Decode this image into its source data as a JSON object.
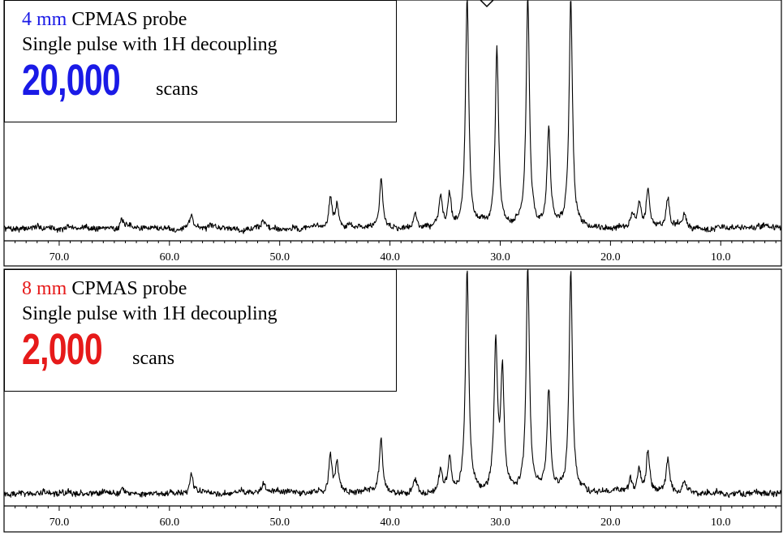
{
  "colors": {
    "probe_4mm": "#1a1ae6",
    "probe_8mm": "#e61a1a",
    "trace": "#000000"
  },
  "panels": [
    {
      "probe_size": "4 mm",
      "probe_rest": " CPMAS probe",
      "pulse": "Single pulse with 1H decoupling",
      "scan_count": "20,000",
      "scan_word": " scans"
    },
    {
      "probe_size": "8 mm",
      "probe_rest": " CPMAS probe",
      "pulse": "Single pulse with 1H decoupling",
      "scan_count": "2,000",
      "scan_word": " scans"
    }
  ],
  "chart_data": [
    {
      "type": "line",
      "xlabel": "",
      "ylabel": "",
      "xlim": [
        75.0,
        4.5
      ],
      "x_reversed": true,
      "tick_labels": [
        "70.0",
        "60.0",
        "50.0",
        "40.0",
        "30.0",
        "20.0",
        "10.0"
      ],
      "tick_values": [
        70,
        60,
        50,
        40,
        30,
        20,
        10
      ],
      "peaks": [
        {
          "x": 64.3,
          "y": 0.6
        },
        {
          "x": 58.0,
          "y": 1.0
        },
        {
          "x": 51.5,
          "y": 0.6
        },
        {
          "x": 45.4,
          "y": 2.3
        },
        {
          "x": 44.8,
          "y": 1.6
        },
        {
          "x": 40.8,
          "y": 3.6
        },
        {
          "x": 37.7,
          "y": 1.0
        },
        {
          "x": 35.4,
          "y": 2.2
        },
        {
          "x": 34.6,
          "y": 2.5
        },
        {
          "x": 33.0,
          "y": 17.0
        },
        {
          "x": 30.3,
          "y": 13.2
        },
        {
          "x": 27.5,
          "y": 17.0
        },
        {
          "x": 25.6,
          "y": 7.4
        },
        {
          "x": 23.6,
          "y": 17.0
        },
        {
          "x": 18.0,
          "y": 0.8
        },
        {
          "x": 17.4,
          "y": 1.7
        },
        {
          "x": 16.6,
          "y": 3.0
        },
        {
          "x": 14.8,
          "y": 2.2
        },
        {
          "x": 13.3,
          "y": 1.0
        }
      ],
      "noise_level": 0.18,
      "ylim": [
        -0.9,
        17.0
      ]
    },
    {
      "type": "line",
      "xlabel": "",
      "ylabel": "",
      "xlim": [
        75.0,
        4.5
      ],
      "x_reversed": true,
      "tick_labels": [
        "70.0",
        "60.0",
        "50.0",
        "40.0",
        "30.0",
        "20.0",
        "10.0"
      ],
      "tick_values": [
        70,
        60,
        50,
        40,
        30,
        20,
        10
      ],
      "peaks": [
        {
          "x": 64.3,
          "y": 0.6
        },
        {
          "x": 58.0,
          "y": 1.5
        },
        {
          "x": 51.5,
          "y": 0.7
        },
        {
          "x": 45.4,
          "y": 2.9
        },
        {
          "x": 44.8,
          "y": 2.2
        },
        {
          "x": 40.8,
          "y": 3.8
        },
        {
          "x": 37.7,
          "y": 1.0
        },
        {
          "x": 35.4,
          "y": 1.9
        },
        {
          "x": 34.6,
          "y": 2.6
        },
        {
          "x": 33.0,
          "y": 17.0
        },
        {
          "x": 30.4,
          "y": 11.2
        },
        {
          "x": 29.8,
          "y": 9.0
        },
        {
          "x": 27.5,
          "y": 17.0
        },
        {
          "x": 25.6,
          "y": 7.6
        },
        {
          "x": 23.6,
          "y": 17.0
        },
        {
          "x": 18.2,
          "y": 1.0
        },
        {
          "x": 17.4,
          "y": 1.6
        },
        {
          "x": 16.6,
          "y": 3.2
        },
        {
          "x": 14.8,
          "y": 2.7
        },
        {
          "x": 13.3,
          "y": 1.0
        }
      ],
      "noise_level": 0.2,
      "ylim": [
        -0.9,
        17.0
      ]
    }
  ]
}
